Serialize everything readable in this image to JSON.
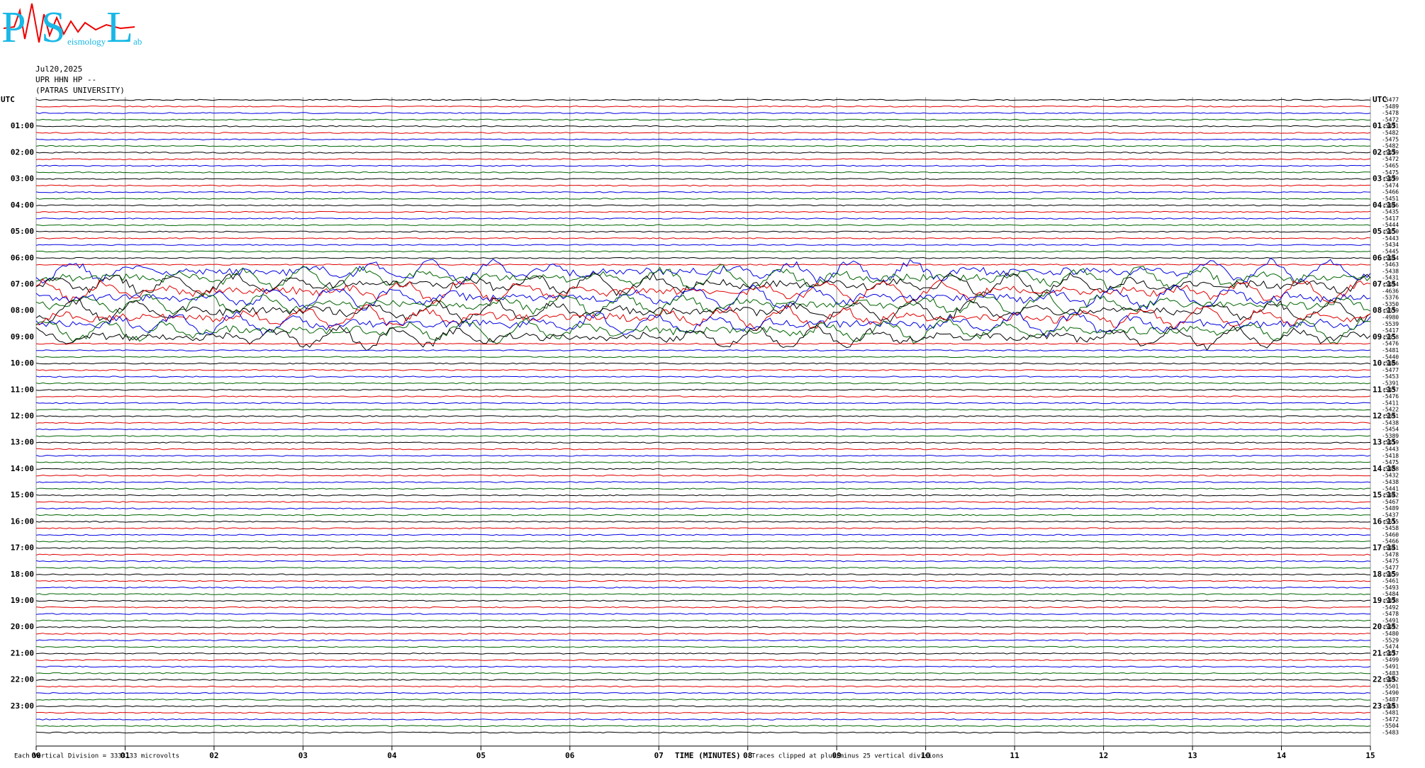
{
  "header": {
    "logo_letters": [
      "P",
      "S",
      "L"
    ],
    "logo_words": [
      "eismology",
      "ab"
    ],
    "date": "Jul20,2025",
    "station": "UPR HHN HP --",
    "institution": "(PATRAS UNIVERSITY)"
  },
  "chart_data": {
    "type": "helicorder",
    "left_labels": [
      "UTC",
      "01:00",
      "02:00",
      "03:00",
      "04:00",
      "05:00",
      "06:00",
      "07:00",
      "08:00",
      "09:00",
      "10:00",
      "11:00",
      "12:00",
      "13:00",
      "14:00",
      "15:00",
      "16:00",
      "17:00",
      "18:00",
      "19:00",
      "20:00",
      "21:00",
      "22:00",
      "23:00"
    ],
    "right_labels": [
      "UTC",
      "01:15",
      "02:15",
      "03:15",
      "04:15",
      "05:15",
      "06:15",
      "07:15",
      "08:15",
      "09:15",
      "10:15",
      "11:15",
      "12:15",
      "13:15",
      "14:15",
      "15:15",
      "16:15",
      "17:15",
      "18:15",
      "19:15",
      "20:15",
      "21:15",
      "22:15",
      "23:15"
    ],
    "trace_offsets": [
      -5477,
      -5489,
      -5478,
      -5472,
      -5471,
      -5482,
      -5475,
      -5482,
      -5479,
      -5472,
      -5465,
      -5475,
      -5479,
      -5474,
      -5466,
      -5451,
      -5446,
      -5435,
      -5417,
      -5444,
      -5450,
      -5443,
      -5434,
      -5445,
      -5444,
      -5463,
      -5438,
      -5431,
      -5494,
      -4636,
      -5376,
      -5350,
      -5639,
      -4980,
      -5539,
      -5417,
      -5358,
      -5476,
      -5481,
      -5440,
      -5406,
      -5477,
      -5453,
      -5391,
      -5437,
      -5476,
      -5411,
      -5422,
      -5391,
      -5438,
      -5454,
      -5389,
      -5419,
      -5443,
      -5418,
      -5475,
      -5488,
      -5432,
      -5438,
      -5441,
      -5442,
      -5467,
      -5489,
      -5437,
      -5515,
      -5458,
      -5460,
      -5466,
      -5441,
      -5478,
      -5475,
      -5477,
      -5459,
      -5461,
      -5493,
      -5484,
      -5478,
      -5492,
      -5478,
      -5491,
      -5492,
      -5480,
      -5529,
      -5474,
      -5477,
      -5499,
      -5491,
      -5483,
      -5492,
      -5501,
      -5490,
      -5487,
      -5493,
      -5481,
      -5472,
      -5504,
      -5483
    ],
    "colors": [
      "#000000",
      "#e00000",
      "#0000e0",
      "#006400"
    ],
    "xlim": [
      0,
      15
    ],
    "xticks": [
      {
        "value": 0,
        "label": "00"
      },
      {
        "value": 1,
        "label": "01"
      },
      {
        "value": 2,
        "label": "02"
      },
      {
        "value": 3,
        "label": "03"
      },
      {
        "value": 4,
        "label": "04"
      },
      {
        "value": 5,
        "label": "05"
      },
      {
        "value": 6,
        "label": "06"
      },
      {
        "value": 7,
        "label": "07"
      },
      {
        "value": 8,
        "label": "08"
      },
      {
        "value": 9,
        "label": "09"
      },
      {
        "value": 10,
        "label": "10"
      },
      {
        "value": 11,
        "label": "11"
      },
      {
        "value": 12,
        "label": "12"
      },
      {
        "value": 13,
        "label": "13"
      },
      {
        "value": 14,
        "label": "14"
      },
      {
        "value": 15,
        "label": "15"
      }
    ],
    "xlabel": "TIME (MINUTES)",
    "footnote_left": "Each Vertical Division = 3333.33 microvolts",
    "footnote_right": "Traces clipped at plus/minus 25 vertical divisions"
  }
}
